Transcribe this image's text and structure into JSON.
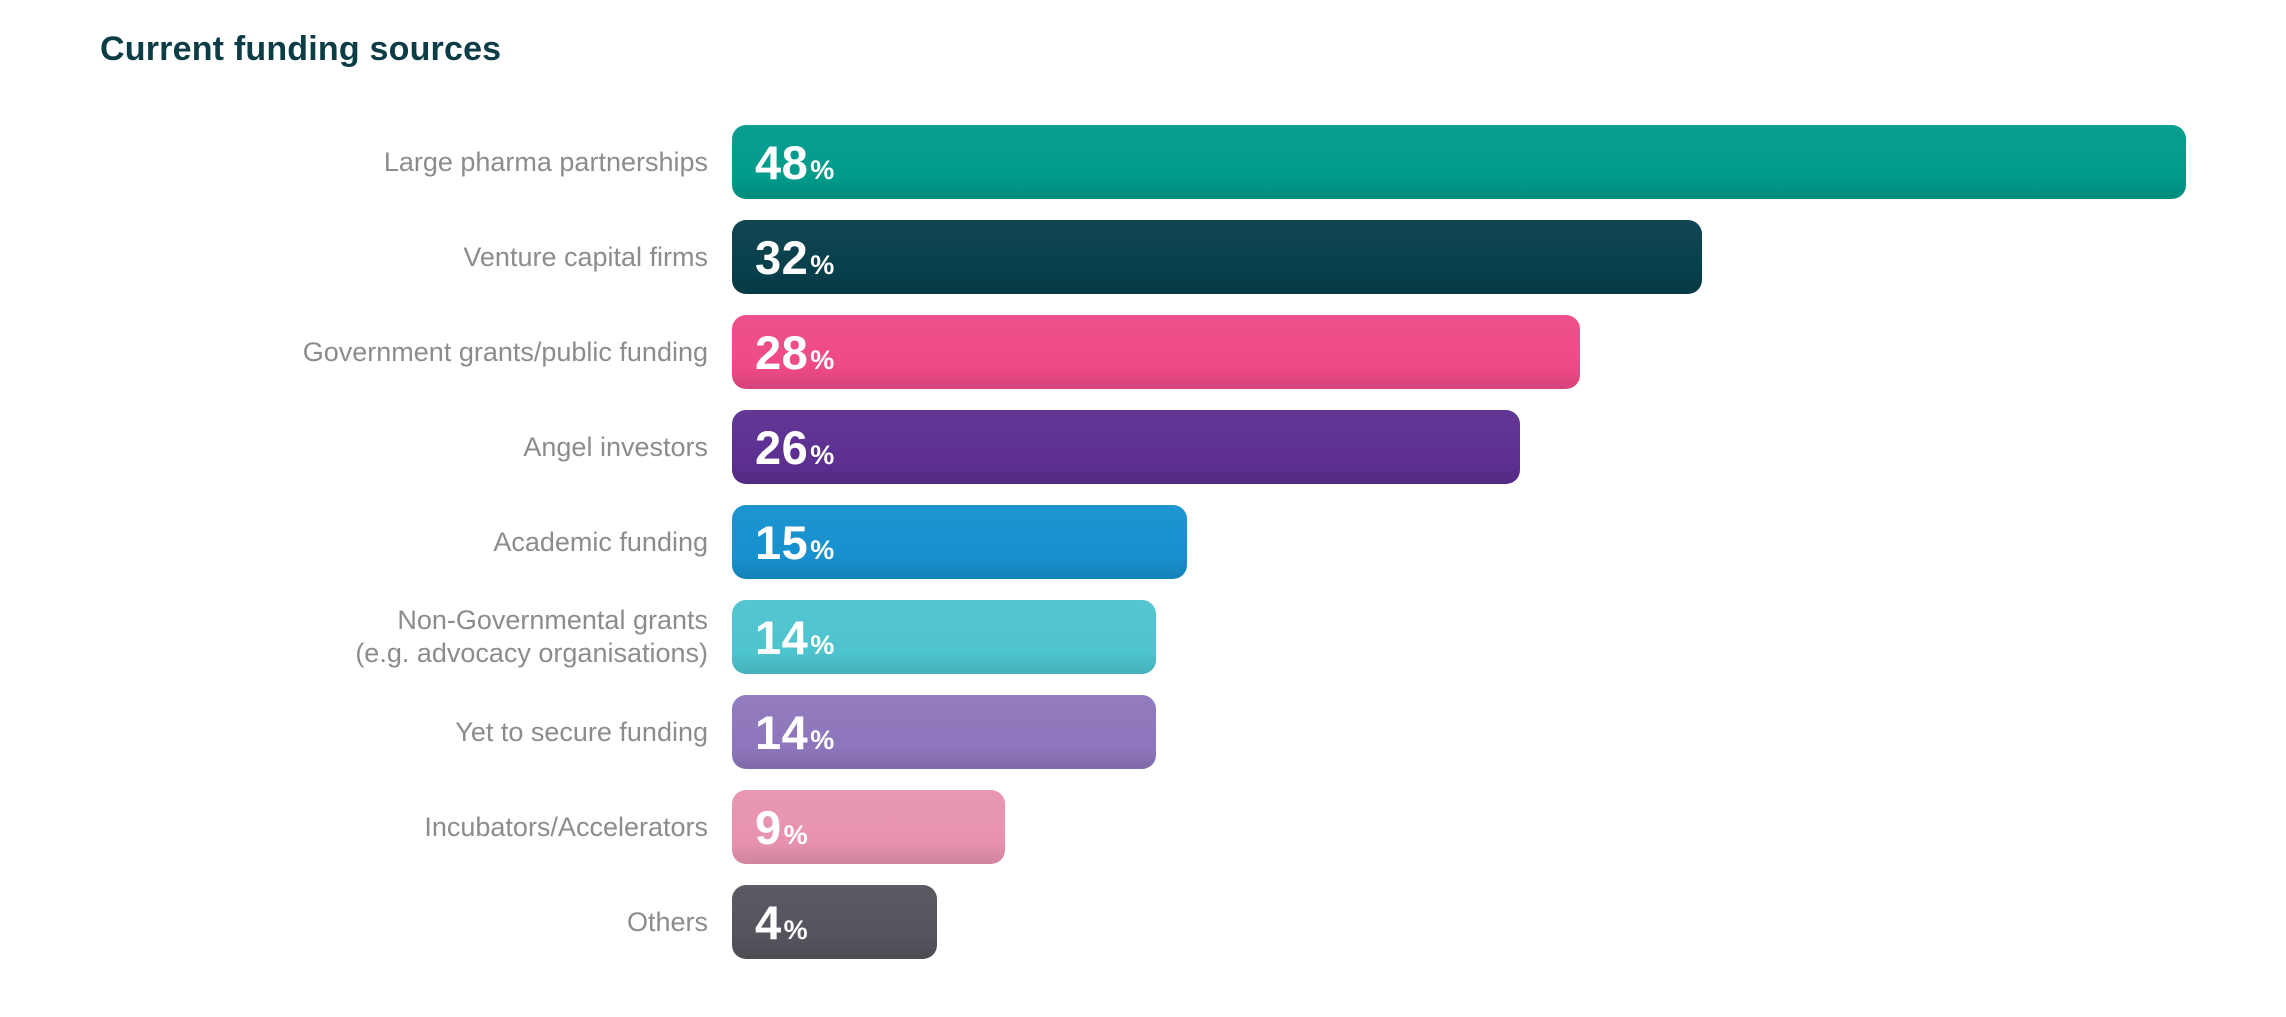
{
  "title": "Current funding sources",
  "colors": {
    "background": "#ffffff",
    "title_text": "#0C3D47",
    "category_label_text": "#8C8C8C",
    "value_label_text": "#ffffff"
  },
  "chart_data": {
    "type": "bar",
    "orientation": "horizontal",
    "title": "Current funding sources",
    "xlabel": "",
    "ylabel": "",
    "xlim": [
      0,
      48
    ],
    "grid": false,
    "legend": false,
    "value_labels_position": "inside-start",
    "value_suffix": "%",
    "categories": [
      "Large pharma partnerships",
      "Venture capital firms",
      "Government grants/public funding",
      "Angel investors",
      "Academic funding",
      "Non-Governmental grants\n(e.g. advocacy organisations)",
      "Yet to secure funding",
      "Incubators/Accelerators",
      "Others"
    ],
    "values": [
      48,
      32,
      28,
      26,
      15,
      14,
      14,
      9,
      4
    ],
    "bar_colors": [
      "#009B8B",
      "#073F4B",
      "#EE4A87",
      "#5C2F91",
      "#1690CE",
      "#4EC4CF",
      "#8E76BC",
      "#E893AE",
      "#55535B"
    ]
  }
}
